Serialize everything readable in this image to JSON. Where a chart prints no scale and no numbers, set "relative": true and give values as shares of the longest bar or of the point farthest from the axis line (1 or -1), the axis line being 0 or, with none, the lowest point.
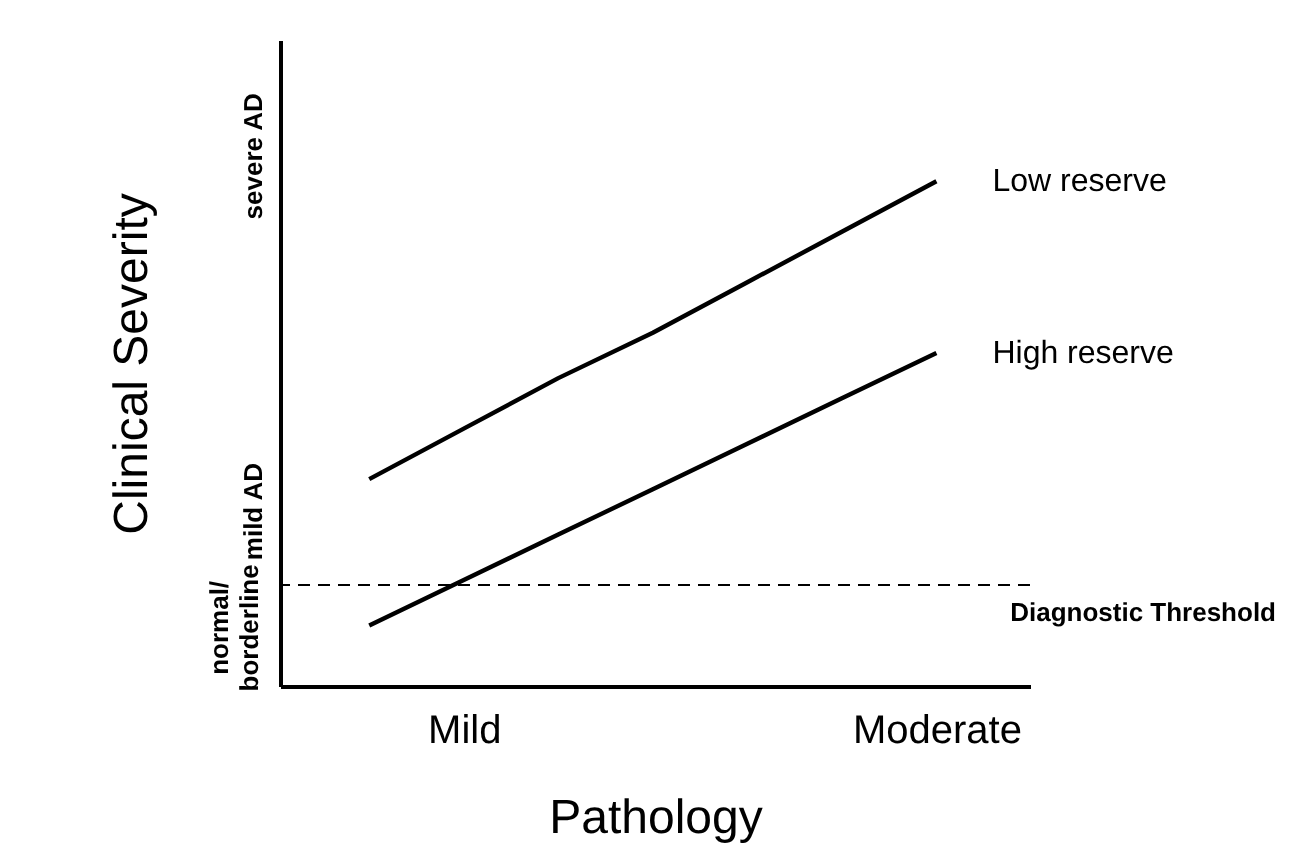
{
  "chart_data": {
    "type": "line",
    "relative": true,
    "xlabel": "Pathology",
    "ylabel": "Clinical Severity",
    "categories": [
      null,
      "Mild",
      null,
      null,
      null,
      null,
      "Moderate"
    ],
    "series": [
      {
        "name": "Low reserve",
        "color": "#000000",
        "values": [
          0.41,
          0.51,
          0.61,
          0.7,
          0.8,
          0.9,
          1
        ]
      },
      {
        "name": "High reserve",
        "color": "#000000",
        "values": [
          0.12,
          0.21,
          0.3,
          0.39,
          0.48,
          0.57,
          0.66
        ]
      }
    ],
    "ref_lines": [
      {
        "axis": "y",
        "value": 0.2,
        "label": "Diagnostic Threshold",
        "line_style": "dashed",
        "color": "#000000"
      }
    ],
    "annotations": [
      "normal/ borderline",
      "mild AD",
      "severe AD"
    ],
    "grid": false,
    "legend": false,
    "marker": "none",
    "line_style": "solid"
  }
}
